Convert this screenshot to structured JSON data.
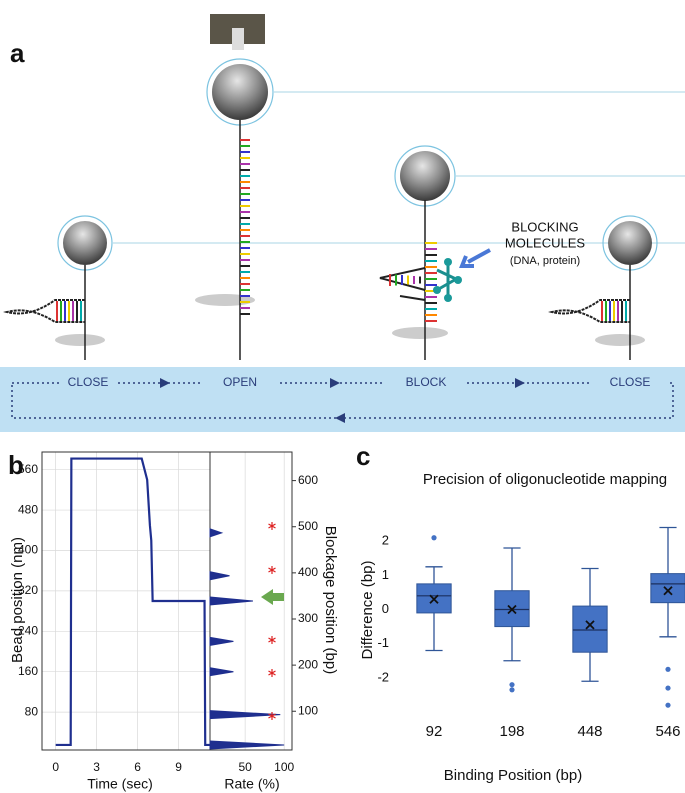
{
  "panel_a": {
    "label": "a",
    "stages": [
      "CLOSE",
      "OPEN",
      "BLOCK",
      "CLOSE"
    ],
    "blocking_label": "BLOCKING",
    "blocking_label_2": "MOLECULES",
    "blocking_sublabel": "(DNA, protein)"
  },
  "chart_data": [
    {
      "type": "line",
      "panel_label": "b",
      "xlabel": "Time (sec)",
      "ylabel": "Bead position (nm)",
      "xlim": [
        -1,
        11.3
      ],
      "xticks": [
        0,
        3,
        6,
        9
      ],
      "ylim": [
        5,
        595
      ],
      "yticks": [
        80,
        160,
        240,
        320,
        400,
        480,
        560
      ],
      "grid": true,
      "series": [
        {
          "color": "#1f2f8f",
          "x": [
            0,
            1.1,
            1.15,
            6.3,
            6.7,
            6.9,
            7.0,
            7.1,
            10.9,
            10.95,
            11.3
          ],
          "values": [
            15,
            15,
            582,
            582,
            540,
            450,
            420,
            300,
            300,
            15,
            15
          ]
        }
      ]
    },
    {
      "type": "hbar",
      "xlabel": "Rate (%)",
      "y2label": "Blockage position (bp)",
      "xlim": [
        5,
        110
      ],
      "xticks": [
        50,
        100
      ],
      "ylim": [
        5,
        595
      ],
      "y2lim": [
        16,
        662
      ],
      "y2ticks": [
        100,
        200,
        300,
        400,
        500,
        600
      ],
      "grid": true,
      "color": "#1f2f8f",
      "positions": [
        435,
        350,
        300,
        220,
        160,
        75,
        15
      ],
      "values": [
        20,
        30,
        60,
        35,
        35,
        95,
        100
      ]
    },
    {
      "type": "box",
      "panel_label": "c",
      "title": "Precision of oligonucleotide mapping",
      "xlabel": "Binding Position (bp)",
      "ylabel": "Difference (bp)",
      "categories": [
        "92",
        "198",
        "448",
        "546"
      ],
      "ylim": [
        -3,
        3
      ],
      "yticks": [
        -2,
        -1,
        0,
        1,
        2
      ],
      "color": "#4472c4",
      "whisker_low": [
        -1.2,
        -1.5,
        -2.1,
        -0.8
      ],
      "q1": [
        -0.1,
        -0.5,
        -1.25,
        0.2
      ],
      "median": [
        0.4,
        0,
        -0.6,
        0.75
      ],
      "q3": [
        0.75,
        0.55,
        0.1,
        1.05
      ],
      "whisker_high": [
        1.25,
        1.8,
        1.2,
        2.4
      ],
      "mean": [
        0.3,
        0,
        -0.45,
        0.55
      ],
      "outliers": [
        [
          2.1
        ],
        [
          -2.2,
          -2.35
        ],
        [],
        [
          -1.75,
          -2.3,
          -2.8
        ]
      ]
    }
  ]
}
